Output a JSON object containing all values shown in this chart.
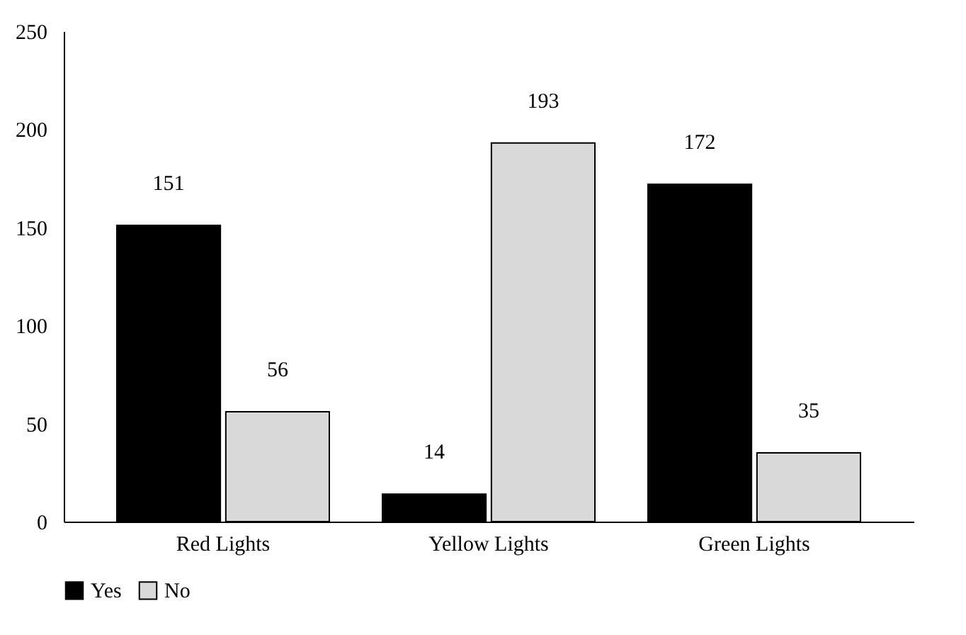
{
  "chart_data": {
    "type": "bar",
    "categories": [
      "Red Lights",
      "Yellow Lights",
      "Green Lights"
    ],
    "series": [
      {
        "name": "Yes",
        "color": "#000000",
        "values": [
          151,
          14,
          172
        ]
      },
      {
        "name": "No",
        "color": "#d9d9d9",
        "values": [
          56,
          193,
          35
        ]
      }
    ],
    "ylim": [
      0,
      250
    ],
    "yticks": [
      0,
      50,
      100,
      150,
      200,
      250
    ],
    "grid": false,
    "legend": "bottom",
    "data_labels": true
  }
}
